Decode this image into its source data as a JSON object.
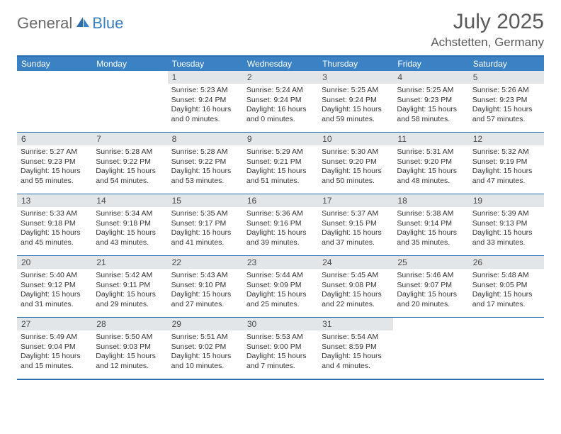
{
  "logo": {
    "general": "General",
    "blue": "Blue"
  },
  "title": {
    "month": "July 2025",
    "location": "Achstetten, Germany"
  },
  "colors": {
    "header_bg": "#3b82c4",
    "header_border": "#2a6db0",
    "daynum_bg": "#e3e6e9",
    "text_dark": "#333333",
    "text_grey": "#5a5a5a",
    "logo_grey": "#6a6a6a",
    "logo_blue": "#3b7fc4"
  },
  "weekdays": [
    "Sunday",
    "Monday",
    "Tuesday",
    "Wednesday",
    "Thursday",
    "Friday",
    "Saturday"
  ],
  "weeks": [
    [
      {
        "empty": true
      },
      {
        "empty": true
      },
      {
        "num": "1",
        "sunrise": "Sunrise: 5:23 AM",
        "sunset": "Sunset: 9:24 PM",
        "daylight": "Daylight: 16 hours and 0 minutes."
      },
      {
        "num": "2",
        "sunrise": "Sunrise: 5:24 AM",
        "sunset": "Sunset: 9:24 PM",
        "daylight": "Daylight: 16 hours and 0 minutes."
      },
      {
        "num": "3",
        "sunrise": "Sunrise: 5:25 AM",
        "sunset": "Sunset: 9:24 PM",
        "daylight": "Daylight: 15 hours and 59 minutes."
      },
      {
        "num": "4",
        "sunrise": "Sunrise: 5:25 AM",
        "sunset": "Sunset: 9:23 PM",
        "daylight": "Daylight: 15 hours and 58 minutes."
      },
      {
        "num": "5",
        "sunrise": "Sunrise: 5:26 AM",
        "sunset": "Sunset: 9:23 PM",
        "daylight": "Daylight: 15 hours and 57 minutes."
      }
    ],
    [
      {
        "num": "6",
        "sunrise": "Sunrise: 5:27 AM",
        "sunset": "Sunset: 9:23 PM",
        "daylight": "Daylight: 15 hours and 55 minutes."
      },
      {
        "num": "7",
        "sunrise": "Sunrise: 5:28 AM",
        "sunset": "Sunset: 9:22 PM",
        "daylight": "Daylight: 15 hours and 54 minutes."
      },
      {
        "num": "8",
        "sunrise": "Sunrise: 5:28 AM",
        "sunset": "Sunset: 9:22 PM",
        "daylight": "Daylight: 15 hours and 53 minutes."
      },
      {
        "num": "9",
        "sunrise": "Sunrise: 5:29 AM",
        "sunset": "Sunset: 9:21 PM",
        "daylight": "Daylight: 15 hours and 51 minutes."
      },
      {
        "num": "10",
        "sunrise": "Sunrise: 5:30 AM",
        "sunset": "Sunset: 9:20 PM",
        "daylight": "Daylight: 15 hours and 50 minutes."
      },
      {
        "num": "11",
        "sunrise": "Sunrise: 5:31 AM",
        "sunset": "Sunset: 9:20 PM",
        "daylight": "Daylight: 15 hours and 48 minutes."
      },
      {
        "num": "12",
        "sunrise": "Sunrise: 5:32 AM",
        "sunset": "Sunset: 9:19 PM",
        "daylight": "Daylight: 15 hours and 47 minutes."
      }
    ],
    [
      {
        "num": "13",
        "sunrise": "Sunrise: 5:33 AM",
        "sunset": "Sunset: 9:18 PM",
        "daylight": "Daylight: 15 hours and 45 minutes."
      },
      {
        "num": "14",
        "sunrise": "Sunrise: 5:34 AM",
        "sunset": "Sunset: 9:18 PM",
        "daylight": "Daylight: 15 hours and 43 minutes."
      },
      {
        "num": "15",
        "sunrise": "Sunrise: 5:35 AM",
        "sunset": "Sunset: 9:17 PM",
        "daylight": "Daylight: 15 hours and 41 minutes."
      },
      {
        "num": "16",
        "sunrise": "Sunrise: 5:36 AM",
        "sunset": "Sunset: 9:16 PM",
        "daylight": "Daylight: 15 hours and 39 minutes."
      },
      {
        "num": "17",
        "sunrise": "Sunrise: 5:37 AM",
        "sunset": "Sunset: 9:15 PM",
        "daylight": "Daylight: 15 hours and 37 minutes."
      },
      {
        "num": "18",
        "sunrise": "Sunrise: 5:38 AM",
        "sunset": "Sunset: 9:14 PM",
        "daylight": "Daylight: 15 hours and 35 minutes."
      },
      {
        "num": "19",
        "sunrise": "Sunrise: 5:39 AM",
        "sunset": "Sunset: 9:13 PM",
        "daylight": "Daylight: 15 hours and 33 minutes."
      }
    ],
    [
      {
        "num": "20",
        "sunrise": "Sunrise: 5:40 AM",
        "sunset": "Sunset: 9:12 PM",
        "daylight": "Daylight: 15 hours and 31 minutes."
      },
      {
        "num": "21",
        "sunrise": "Sunrise: 5:42 AM",
        "sunset": "Sunset: 9:11 PM",
        "daylight": "Daylight: 15 hours and 29 minutes."
      },
      {
        "num": "22",
        "sunrise": "Sunrise: 5:43 AM",
        "sunset": "Sunset: 9:10 PM",
        "daylight": "Daylight: 15 hours and 27 minutes."
      },
      {
        "num": "23",
        "sunrise": "Sunrise: 5:44 AM",
        "sunset": "Sunset: 9:09 PM",
        "daylight": "Daylight: 15 hours and 25 minutes."
      },
      {
        "num": "24",
        "sunrise": "Sunrise: 5:45 AM",
        "sunset": "Sunset: 9:08 PM",
        "daylight": "Daylight: 15 hours and 22 minutes."
      },
      {
        "num": "25",
        "sunrise": "Sunrise: 5:46 AM",
        "sunset": "Sunset: 9:07 PM",
        "daylight": "Daylight: 15 hours and 20 minutes."
      },
      {
        "num": "26",
        "sunrise": "Sunrise: 5:48 AM",
        "sunset": "Sunset: 9:05 PM",
        "daylight": "Daylight: 15 hours and 17 minutes."
      }
    ],
    [
      {
        "num": "27",
        "sunrise": "Sunrise: 5:49 AM",
        "sunset": "Sunset: 9:04 PM",
        "daylight": "Daylight: 15 hours and 15 minutes."
      },
      {
        "num": "28",
        "sunrise": "Sunrise: 5:50 AM",
        "sunset": "Sunset: 9:03 PM",
        "daylight": "Daylight: 15 hours and 12 minutes."
      },
      {
        "num": "29",
        "sunrise": "Sunrise: 5:51 AM",
        "sunset": "Sunset: 9:02 PM",
        "daylight": "Daylight: 15 hours and 10 minutes."
      },
      {
        "num": "30",
        "sunrise": "Sunrise: 5:53 AM",
        "sunset": "Sunset: 9:00 PM",
        "daylight": "Daylight: 15 hours and 7 minutes."
      },
      {
        "num": "31",
        "sunrise": "Sunrise: 5:54 AM",
        "sunset": "Sunset: 8:59 PM",
        "daylight": "Daylight: 15 hours and 4 minutes."
      },
      {
        "empty": true
      },
      {
        "empty": true
      }
    ]
  ]
}
